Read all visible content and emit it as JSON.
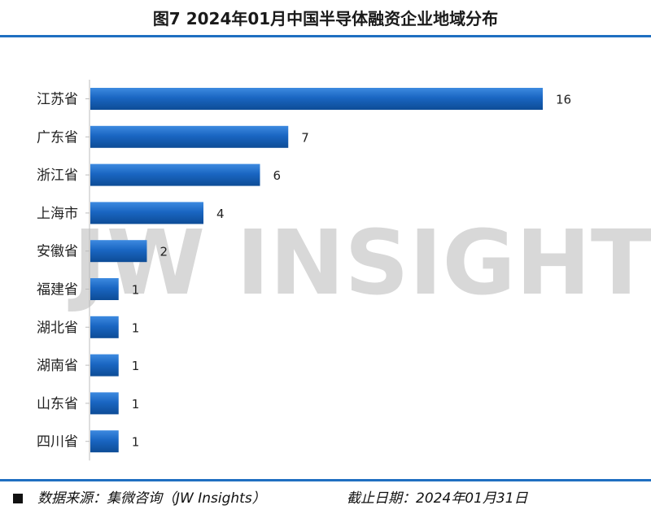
{
  "header": {
    "title": "图7  2024年01月中国半导体融资企业地域分布"
  },
  "watermark": "JW INSIGHTS",
  "footer": {
    "source": "数据来源：集微咨询（JW Insights）",
    "date": "截止日期：2024年01月31日"
  },
  "colors": {
    "bar": "#1a66c2",
    "bar_dark": "#0d4c96",
    "accent": "#1f6fc1"
  },
  "chart_data": {
    "type": "bar",
    "orientation": "horizontal",
    "categories": [
      "江苏省",
      "广东省",
      "浙江省",
      "上海市",
      "安徽省",
      "福建省",
      "湖北省",
      "湖南省",
      "山东省",
      "四川省"
    ],
    "values": [
      16,
      7,
      6,
      4,
      2,
      1,
      1,
      1,
      1,
      1
    ],
    "xlim": [
      0,
      16
    ],
    "grid": false,
    "legend": "none"
  }
}
